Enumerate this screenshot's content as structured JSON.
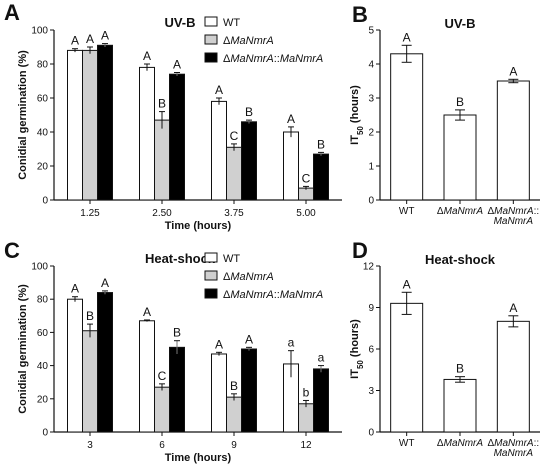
{
  "colors": {
    "WT": "#ffffff",
    "dMaNmrA": "#d0d0d0",
    "comp": "#000000",
    "stroke": "#111111"
  },
  "legend_entries": [
    "WT",
    "ΔMaNmrA",
    "ΔMaNmrA::MaNmrA"
  ],
  "chart_data": [
    {
      "panel": "A",
      "type": "bar",
      "title": "UV-B",
      "xlabel": "Time (hours)",
      "ylabel": "Conidial germination (%)",
      "ylim": [
        0,
        100
      ],
      "yticks": [
        0,
        20,
        40,
        60,
        80,
        100
      ],
      "categories": [
        "1.25",
        "2.50",
        "3.75",
        "5.00"
      ],
      "legend_position": "top-right",
      "series": [
        {
          "name": "WT",
          "values": [
            88,
            78,
            58,
            40
          ],
          "errors": [
            1,
            2,
            2,
            3
          ],
          "letters": [
            "A",
            "A",
            "A",
            "A"
          ]
        },
        {
          "name": "ΔMaNmrA",
          "values": [
            88,
            47,
            31,
            7
          ],
          "errors": [
            2,
            5,
            2,
            1
          ],
          "letters": [
            "A",
            "B",
            "C",
            "C"
          ]
        },
        {
          "name": "ΔMaNmrA::MaNmrA",
          "values": [
            91,
            74,
            46,
            27
          ],
          "errors": [
            1,
            1,
            1,
            1
          ],
          "letters": [
            "A",
            "A",
            "B",
            "B"
          ]
        }
      ]
    },
    {
      "panel": "B",
      "type": "bar",
      "title": "UV-B",
      "ylabel": "IT50 (hours)",
      "ylim": [
        0,
        5
      ],
      "yticks": [
        0,
        1,
        2,
        3,
        4,
        5
      ],
      "categories": [
        "WT",
        "ΔMaNmrA",
        "ΔMaNmrA::MaNmrA"
      ],
      "values": [
        4.3,
        2.5,
        3.5
      ],
      "errors": [
        0.25,
        0.15,
        0.05
      ],
      "letters": [
        "A",
        "B",
        "A"
      ]
    },
    {
      "panel": "C",
      "type": "bar",
      "title": "Heat-shock",
      "xlabel": "Time (hours)",
      "ylabel": "Conidial germination (%)",
      "ylim": [
        0,
        100
      ],
      "yticks": [
        0,
        20,
        40,
        60,
        80,
        100
      ],
      "categories": [
        "3",
        "6",
        "9",
        "12"
      ],
      "legend_position": "top-right",
      "series": [
        {
          "name": "WT",
          "values": [
            80,
            67,
            47,
            41
          ],
          "errors": [
            1.5,
            0.5,
            1,
            8
          ],
          "letters": [
            "A",
            "A",
            "A",
            "a"
          ]
        },
        {
          "name": "ΔMaNmrA",
          "values": [
            61,
            27,
            21,
            17
          ],
          "errors": [
            4,
            2,
            2,
            2
          ],
          "letters": [
            "B",
            "C",
            "B",
            "b"
          ]
        },
        {
          "name": "ΔMaNmrA::MaNmrA",
          "values": [
            84,
            51,
            50,
            38
          ],
          "errors": [
            1,
            4,
            1,
            2
          ],
          "letters": [
            "A",
            "B",
            "A",
            "a"
          ]
        }
      ]
    },
    {
      "panel": "D",
      "type": "bar",
      "title": "Heat-shock",
      "ylabel": "IT50 (hours)",
      "ylim": [
        0,
        12
      ],
      "yticks": [
        0,
        3,
        6,
        9,
        12
      ],
      "categories": [
        "WT",
        "ΔMaNmrA",
        "ΔMaNmrA::MaNmrA"
      ],
      "values": [
        9.3,
        3.8,
        8.0
      ],
      "errors": [
        0.8,
        0.2,
        0.4
      ],
      "letters": [
        "A",
        "B",
        "A"
      ]
    }
  ]
}
